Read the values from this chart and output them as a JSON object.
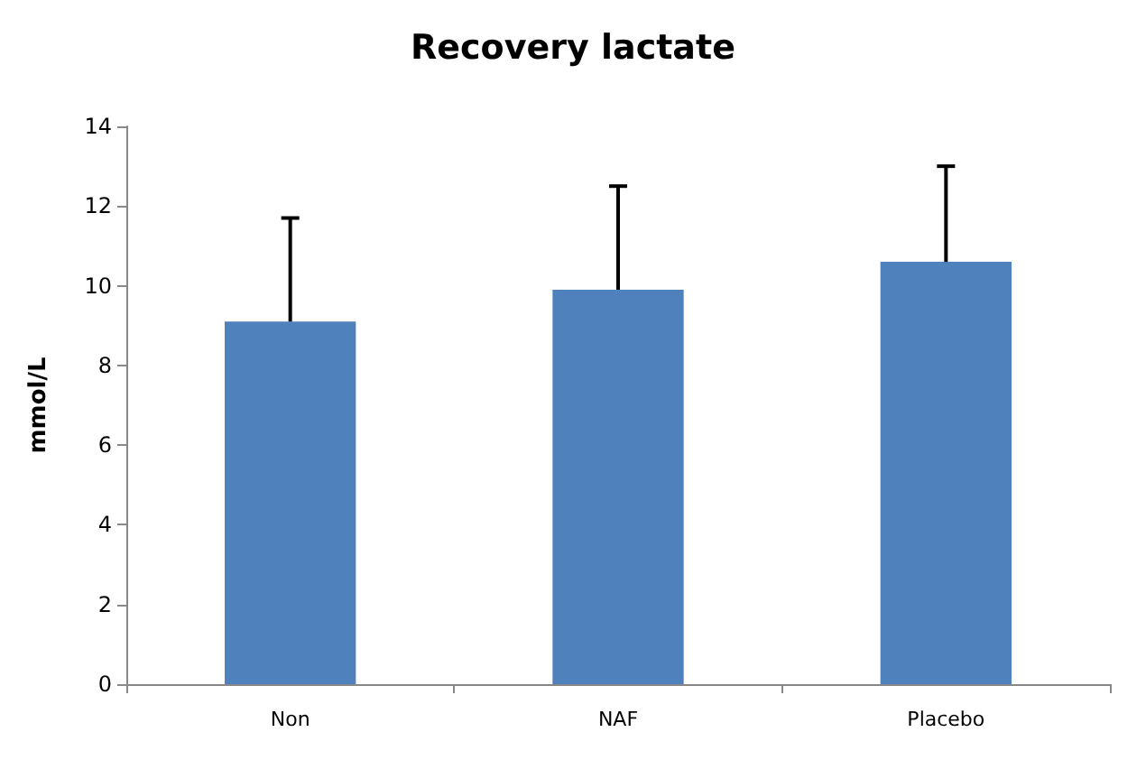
{
  "chart_data": {
    "type": "bar",
    "title": "Recovery lactate",
    "ylabel": "mmol/L",
    "categories": [
      "Non",
      "NAF",
      "Placebo"
    ],
    "values": [
      9.1,
      9.9,
      10.6
    ],
    "errors": [
      [
        9.1,
        11.7
      ],
      [
        9.9,
        12.5
      ],
      [
        10.6,
        13.0
      ]
    ],
    "color": "#4f81bd",
    "ylim": [
      0,
      14
    ],
    "yticks": [
      0,
      2,
      4,
      6,
      8,
      10,
      12,
      14
    ],
    "grid": false
  }
}
